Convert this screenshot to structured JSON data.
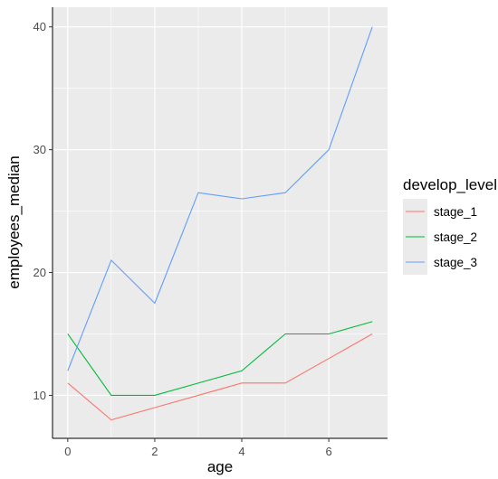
{
  "chart_data": {
    "type": "line",
    "xlabel": "age",
    "ylabel": "employees_median",
    "xlim": [
      -0.35,
      7.35
    ],
    "ylim": [
      6.5,
      41.6
    ],
    "xticks": [
      0,
      2,
      4,
      6
    ],
    "yticks": [
      10,
      20,
      30,
      40
    ],
    "x": [
      0,
      1,
      2,
      3,
      4,
      5,
      6,
      7
    ],
    "legend": {
      "title": "develop_level",
      "placement": "right"
    },
    "series": [
      {
        "name": "stage_1",
        "color": "#F8766D",
        "values": [
          11,
          8,
          9,
          10,
          11,
          11,
          13,
          15
        ]
      },
      {
        "name": "stage_2",
        "color": "#00BA38",
        "values": [
          15,
          10,
          10,
          11,
          12,
          15,
          15,
          16
        ]
      },
      {
        "name": "stage_3",
        "color": "#619CFF",
        "values": [
          12,
          21,
          17.5,
          26.5,
          26,
          26.5,
          30,
          40
        ]
      }
    ],
    "grid": true,
    "panel_background": "#EBEBEB"
  }
}
